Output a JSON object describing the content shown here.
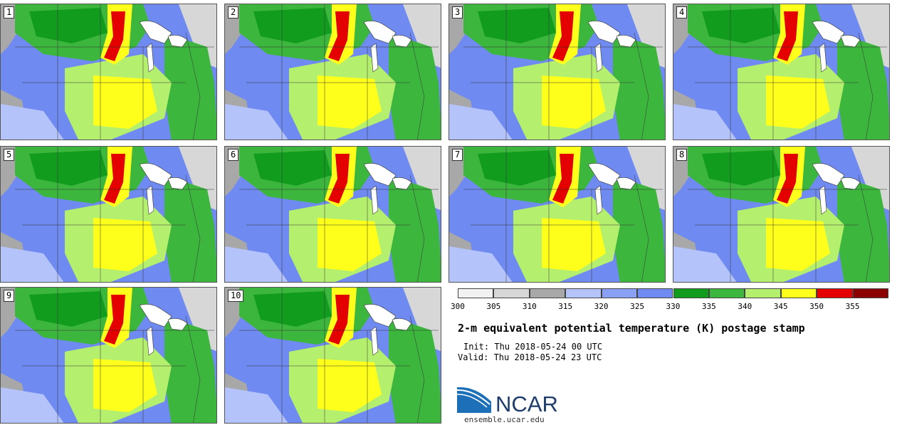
{
  "panels": [
    "1",
    "2",
    "3",
    "4",
    "5",
    "6",
    "7",
    "8",
    "9",
    "10"
  ],
  "legend": {
    "colors": [
      "#f2f2f2",
      "#d7d7d7",
      "#a8a8a8",
      "#b4c4fa",
      "#8aa0f5",
      "#6f8af0",
      "#119c1d",
      "#3db63d",
      "#b4f06e",
      "#ffff1c",
      "#e50000",
      "#8b0000"
    ],
    "labels": [
      "300",
      "305",
      "310",
      "315",
      "320",
      "325",
      "330",
      "335",
      "340",
      "345",
      "350",
      "355"
    ]
  },
  "title": "2-m equivalent potential temperature (K) postage stamp",
  "init": "Init: Thu 2018-05-24 00 UTC",
  "valid": "Valid: Thu 2018-05-24 23 UTC",
  "logo_text": "NCAR",
  "site": "ensemble.ucar.edu"
}
